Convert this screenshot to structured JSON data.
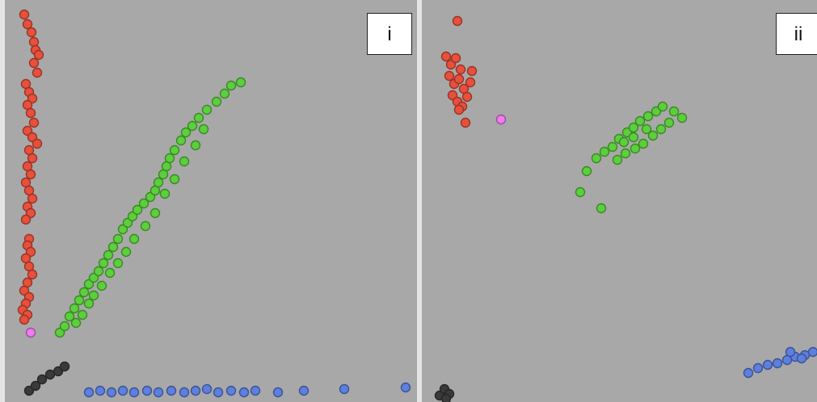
{
  "chart_data": [
    {
      "type": "scatter",
      "panel_label": "i",
      "grid": false,
      "legend": "none",
      "series": [
        {
          "color": "#e8503c",
          "points": [
            [
              24,
              18
            ],
            [
              28,
              30
            ],
            [
              33,
              40
            ],
            [
              36,
              52
            ],
            [
              38,
              62
            ],
            [
              42,
              68
            ],
            [
              36,
              78
            ],
            [
              40,
              90
            ],
            [
              26,
              104
            ],
            [
              30,
              114
            ],
            [
              34,
              122
            ],
            [
              28,
              130
            ],
            [
              32,
              140
            ],
            [
              36,
              152
            ],
            [
              28,
              162
            ],
            [
              34,
              170
            ],
            [
              40,
              178
            ],
            [
              30,
              186
            ],
            [
              34,
              196
            ],
            [
              28,
              206
            ],
            [
              32,
              216
            ],
            [
              26,
              226
            ],
            [
              30,
              236
            ],
            [
              34,
              246
            ],
            [
              28,
              256
            ],
            [
              32,
              264
            ],
            [
              26,
              272
            ],
            [
              30,
              296
            ],
            [
              28,
              304
            ],
            [
              32,
              312
            ],
            [
              26,
              320
            ],
            [
              30,
              330
            ],
            [
              34,
              340
            ],
            [
              28,
              350
            ],
            [
              24,
              360
            ],
            [
              30,
              368
            ],
            [
              26,
              376
            ],
            [
              22,
              384
            ],
            [
              28,
              390
            ],
            [
              24,
              396
            ]
          ]
        },
        {
          "color": "#5ccf3c",
          "points": [
            [
              68,
              412
            ],
            [
              74,
              404
            ],
            [
              80,
              392
            ],
            [
              86,
              382
            ],
            [
              92,
              372
            ],
            [
              98,
              362
            ],
            [
              104,
              352
            ],
            [
              110,
              344
            ],
            [
              116,
              336
            ],
            [
              122,
              326
            ],
            [
              128,
              316
            ],
            [
              134,
              306
            ],
            [
              140,
              296
            ],
            [
              146,
              284
            ],
            [
              152,
              276
            ],
            [
              158,
              268
            ],
            [
              164,
              260
            ],
            [
              172,
              252
            ],
            [
              180,
              244
            ],
            [
              186,
              236
            ],
            [
              190,
              226
            ],
            [
              196,
              216
            ],
            [
              200,
              206
            ],
            [
              204,
              196
            ],
            [
              210,
              186
            ],
            [
              218,
              174
            ],
            [
              224,
              164
            ],
            [
              232,
              156
            ],
            [
              240,
              146
            ],
            [
              250,
              136
            ],
            [
              262,
              126
            ],
            [
              272,
              116
            ],
            [
              280,
              106
            ],
            [
              292,
              102
            ],
            [
              88,
              400
            ],
            [
              96,
              390
            ],
            [
              104,
              376
            ],
            [
              110,
              366
            ],
            [
              120,
              354
            ],
            [
              130,
              338
            ],
            [
              140,
              326
            ],
            [
              150,
              312
            ],
            [
              160,
              296
            ],
            [
              174,
              280
            ],
            [
              186,
              264
            ],
            [
              198,
              240
            ],
            [
              210,
              222
            ],
            [
              222,
              200
            ],
            [
              236,
              180
            ],
            [
              246,
              160
            ]
          ]
        },
        {
          "color": "#5d7fe0",
          "points": [
            [
              104,
              486
            ],
            [
              118,
              484
            ],
            [
              132,
              486
            ],
            [
              146,
              484
            ],
            [
              160,
              486
            ],
            [
              176,
              484
            ],
            [
              190,
              486
            ],
            [
              206,
              484
            ],
            [
              222,
              486
            ],
            [
              236,
              484
            ],
            [
              250,
              482
            ],
            [
              264,
              486
            ],
            [
              280,
              484
            ],
            [
              296,
              486
            ],
            [
              310,
              484
            ],
            [
              338,
              486
            ],
            [
              370,
              484
            ],
            [
              420,
              482
            ],
            [
              496,
              480
            ]
          ]
        },
        {
          "color": "#3a3a3a",
          "points": [
            [
              30,
              484
            ],
            [
              38,
              478
            ],
            [
              46,
              470
            ],
            [
              56,
              464
            ],
            [
              66,
              460
            ],
            [
              74,
              454
            ]
          ]
        },
        {
          "color": "#f07cf0",
          "points": [
            [
              32,
              412
            ]
          ]
        }
      ]
    },
    {
      "type": "scatter",
      "panel_label": "ii",
      "grid": false,
      "legend": "none",
      "series": [
        {
          "color": "#e8503c",
          "points": [
            [
              44,
              26
            ],
            [
              30,
              70
            ],
            [
              36,
              80
            ],
            [
              42,
              72
            ],
            [
              48,
              86
            ],
            [
              34,
              94
            ],
            [
              40,
              104
            ],
            [
              46,
              98
            ],
            [
              52,
              110
            ],
            [
              38,
              118
            ],
            [
              44,
              126
            ],
            [
              50,
              132
            ],
            [
              56,
              120
            ],
            [
              60,
              102
            ],
            [
              62,
              88
            ],
            [
              46,
              136
            ],
            [
              54,
              152
            ]
          ]
        },
        {
          "color": "#5ccf3c",
          "points": [
            [
              196,
              238
            ],
            [
              222,
              258
            ],
            [
              204,
              212
            ],
            [
              216,
              196
            ],
            [
              226,
              188
            ],
            [
              236,
              182
            ],
            [
              244,
              172
            ],
            [
              254,
              164
            ],
            [
              262,
              158
            ],
            [
              270,
              150
            ],
            [
              280,
              144
            ],
            [
              290,
              138
            ],
            [
              298,
              132
            ],
            [
              312,
              138
            ],
            [
              322,
              146
            ],
            [
              242,
              198
            ],
            [
              252,
              190
            ],
            [
              264,
              184
            ],
            [
              274,
              178
            ],
            [
              286,
              168
            ],
            [
              296,
              160
            ],
            [
              306,
              152
            ],
            [
              250,
              176
            ],
            [
              262,
              170
            ],
            [
              278,
              160
            ]
          ]
        },
        {
          "color": "#5d7fe0",
          "points": [
            [
              404,
              462
            ],
            [
              416,
              456
            ],
            [
              428,
              452
            ],
            [
              440,
              450
            ],
            [
              452,
              446
            ],
            [
              462,
              442
            ],
            [
              474,
              440
            ],
            [
              484,
              436
            ],
            [
              456,
              436
            ],
            [
              470,
              444
            ]
          ]
        },
        {
          "color": "#3a3a3a",
          "points": [
            [
              22,
              490
            ],
            [
              28,
              482
            ],
            [
              34,
              488
            ],
            [
              30,
              494
            ]
          ]
        },
        {
          "color": "#f07cf0",
          "points": [
            [
              98,
              148
            ]
          ]
        }
      ]
    }
  ]
}
